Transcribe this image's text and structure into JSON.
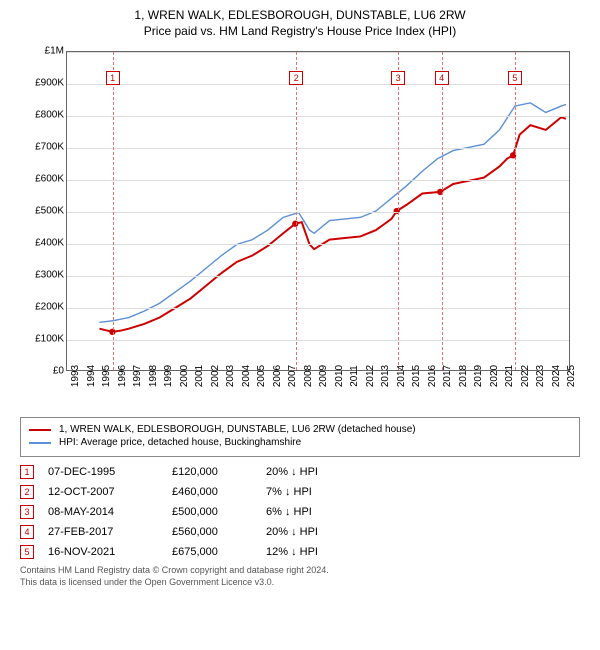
{
  "title_line1": "1, WREN WALK, EDLESBOROUGH, DUNSTABLE, LU6 2RW",
  "title_line2": "Price paid vs. HM Land Registry's House Price Index (HPI)",
  "chart": {
    "type": "line",
    "x_years": [
      1993,
      1994,
      1995,
      1996,
      1997,
      1998,
      1999,
      2000,
      2001,
      2002,
      2003,
      2004,
      2005,
      2006,
      2007,
      2008,
      2009,
      2010,
      2011,
      2012,
      2013,
      2014,
      2015,
      2016,
      2017,
      2018,
      2019,
      2020,
      2021,
      2022,
      2023,
      2024,
      2025
    ],
    "xlim": [
      1993,
      2025.5
    ],
    "ylim": [
      0,
      1000000
    ],
    "ytick_step": 100000,
    "ytick_labels": [
      "£0",
      "£100K",
      "£200K",
      "£300K",
      "£400K",
      "£500K",
      "£600K",
      "£700K",
      "£800K",
      "£900K",
      "£1M"
    ],
    "grid_color": "#dddddd",
    "border_color": "#666666",
    "background_color": "#ffffff",
    "marker_border_color": "#cc0000",
    "vline_color": "#e57373",
    "series": [
      {
        "name": "red",
        "label": "1, WREN WALK, EDLESBOROUGH, DUNSTABLE, LU6 2RW (detached house)",
        "color": "#cc0000",
        "width": 2,
        "points": [
          [
            1995.1,
            130000
          ],
          [
            1995.94,
            120000
          ],
          [
            1996.5,
            124000
          ],
          [
            1997,
            130000
          ],
          [
            1998,
            145000
          ],
          [
            1999,
            165000
          ],
          [
            2000,
            195000
          ],
          [
            2001,
            225000
          ],
          [
            2002,
            265000
          ],
          [
            2003,
            305000
          ],
          [
            2004,
            340000
          ],
          [
            2005,
            360000
          ],
          [
            2006,
            390000
          ],
          [
            2007,
            430000
          ],
          [
            2007.78,
            460000
          ],
          [
            2008.2,
            465000
          ],
          [
            2008.7,
            395000
          ],
          [
            2009,
            380000
          ],
          [
            2010,
            410000
          ],
          [
            2011,
            415000
          ],
          [
            2012,
            420000
          ],
          [
            2013,
            440000
          ],
          [
            2014,
            475000
          ],
          [
            2014.35,
            500000
          ],
          [
            2015,
            520000
          ],
          [
            2016,
            555000
          ],
          [
            2017.16,
            560000
          ],
          [
            2018,
            585000
          ],
          [
            2019,
            595000
          ],
          [
            2020,
            605000
          ],
          [
            2021,
            640000
          ],
          [
            2021.5,
            665000
          ],
          [
            2021.88,
            675000
          ],
          [
            2022.3,
            740000
          ],
          [
            2023,
            770000
          ],
          [
            2024,
            755000
          ],
          [
            2025,
            795000
          ],
          [
            2025.3,
            790000
          ]
        ]
      },
      {
        "name": "blue",
        "label": "HPI: Average price, detached house, Buckinghamshire",
        "color": "#5b8fd6",
        "width": 1.4,
        "points": [
          [
            1995.1,
            150000
          ],
          [
            1996,
            155000
          ],
          [
            1997,
            165000
          ],
          [
            1998,
            185000
          ],
          [
            1999,
            210000
          ],
          [
            2000,
            245000
          ],
          [
            2001,
            280000
          ],
          [
            2002,
            320000
          ],
          [
            2003,
            360000
          ],
          [
            2004,
            395000
          ],
          [
            2005,
            410000
          ],
          [
            2006,
            440000
          ],
          [
            2007,
            480000
          ],
          [
            2008,
            495000
          ],
          [
            2008.7,
            440000
          ],
          [
            2009,
            430000
          ],
          [
            2010,
            470000
          ],
          [
            2011,
            475000
          ],
          [
            2012,
            480000
          ],
          [
            2013,
            500000
          ],
          [
            2014,
            540000
          ],
          [
            2015,
            580000
          ],
          [
            2016,
            625000
          ],
          [
            2017,
            665000
          ],
          [
            2018,
            690000
          ],
          [
            2019,
            700000
          ],
          [
            2020,
            710000
          ],
          [
            2021,
            755000
          ],
          [
            2022,
            830000
          ],
          [
            2023,
            840000
          ],
          [
            2024,
            810000
          ],
          [
            2025,
            830000
          ],
          [
            2025.3,
            835000
          ]
        ]
      }
    ],
    "transactions": [
      {
        "n": "1",
        "year": 1995.94,
        "y_marker": 920000,
        "date": "07-DEC-1995",
        "price": "£120,000",
        "diff": "20% ↓ HPI"
      },
      {
        "n": "2",
        "year": 2007.78,
        "y_marker": 920000,
        "date": "12-OCT-2007",
        "price": "£460,000",
        "diff": "7% ↓ HPI"
      },
      {
        "n": "3",
        "year": 2014.35,
        "y_marker": 920000,
        "date": "08-MAY-2014",
        "price": "£500,000",
        "diff": "6% ↓ HPI"
      },
      {
        "n": "4",
        "year": 2017.16,
        "y_marker": 920000,
        "date": "27-FEB-2017",
        "price": "£560,000",
        "diff": "20% ↓ HPI"
      },
      {
        "n": "5",
        "year": 2021.88,
        "y_marker": 920000,
        "date": "16-NOV-2021",
        "price": "£675,000",
        "diff": "12% ↓ HPI"
      }
    ]
  },
  "footnote_line1": "Contains HM Land Registry data © Crown copyright and database right 2024.",
  "footnote_line2": "This data is licensed under the Open Government Licence v3.0."
}
